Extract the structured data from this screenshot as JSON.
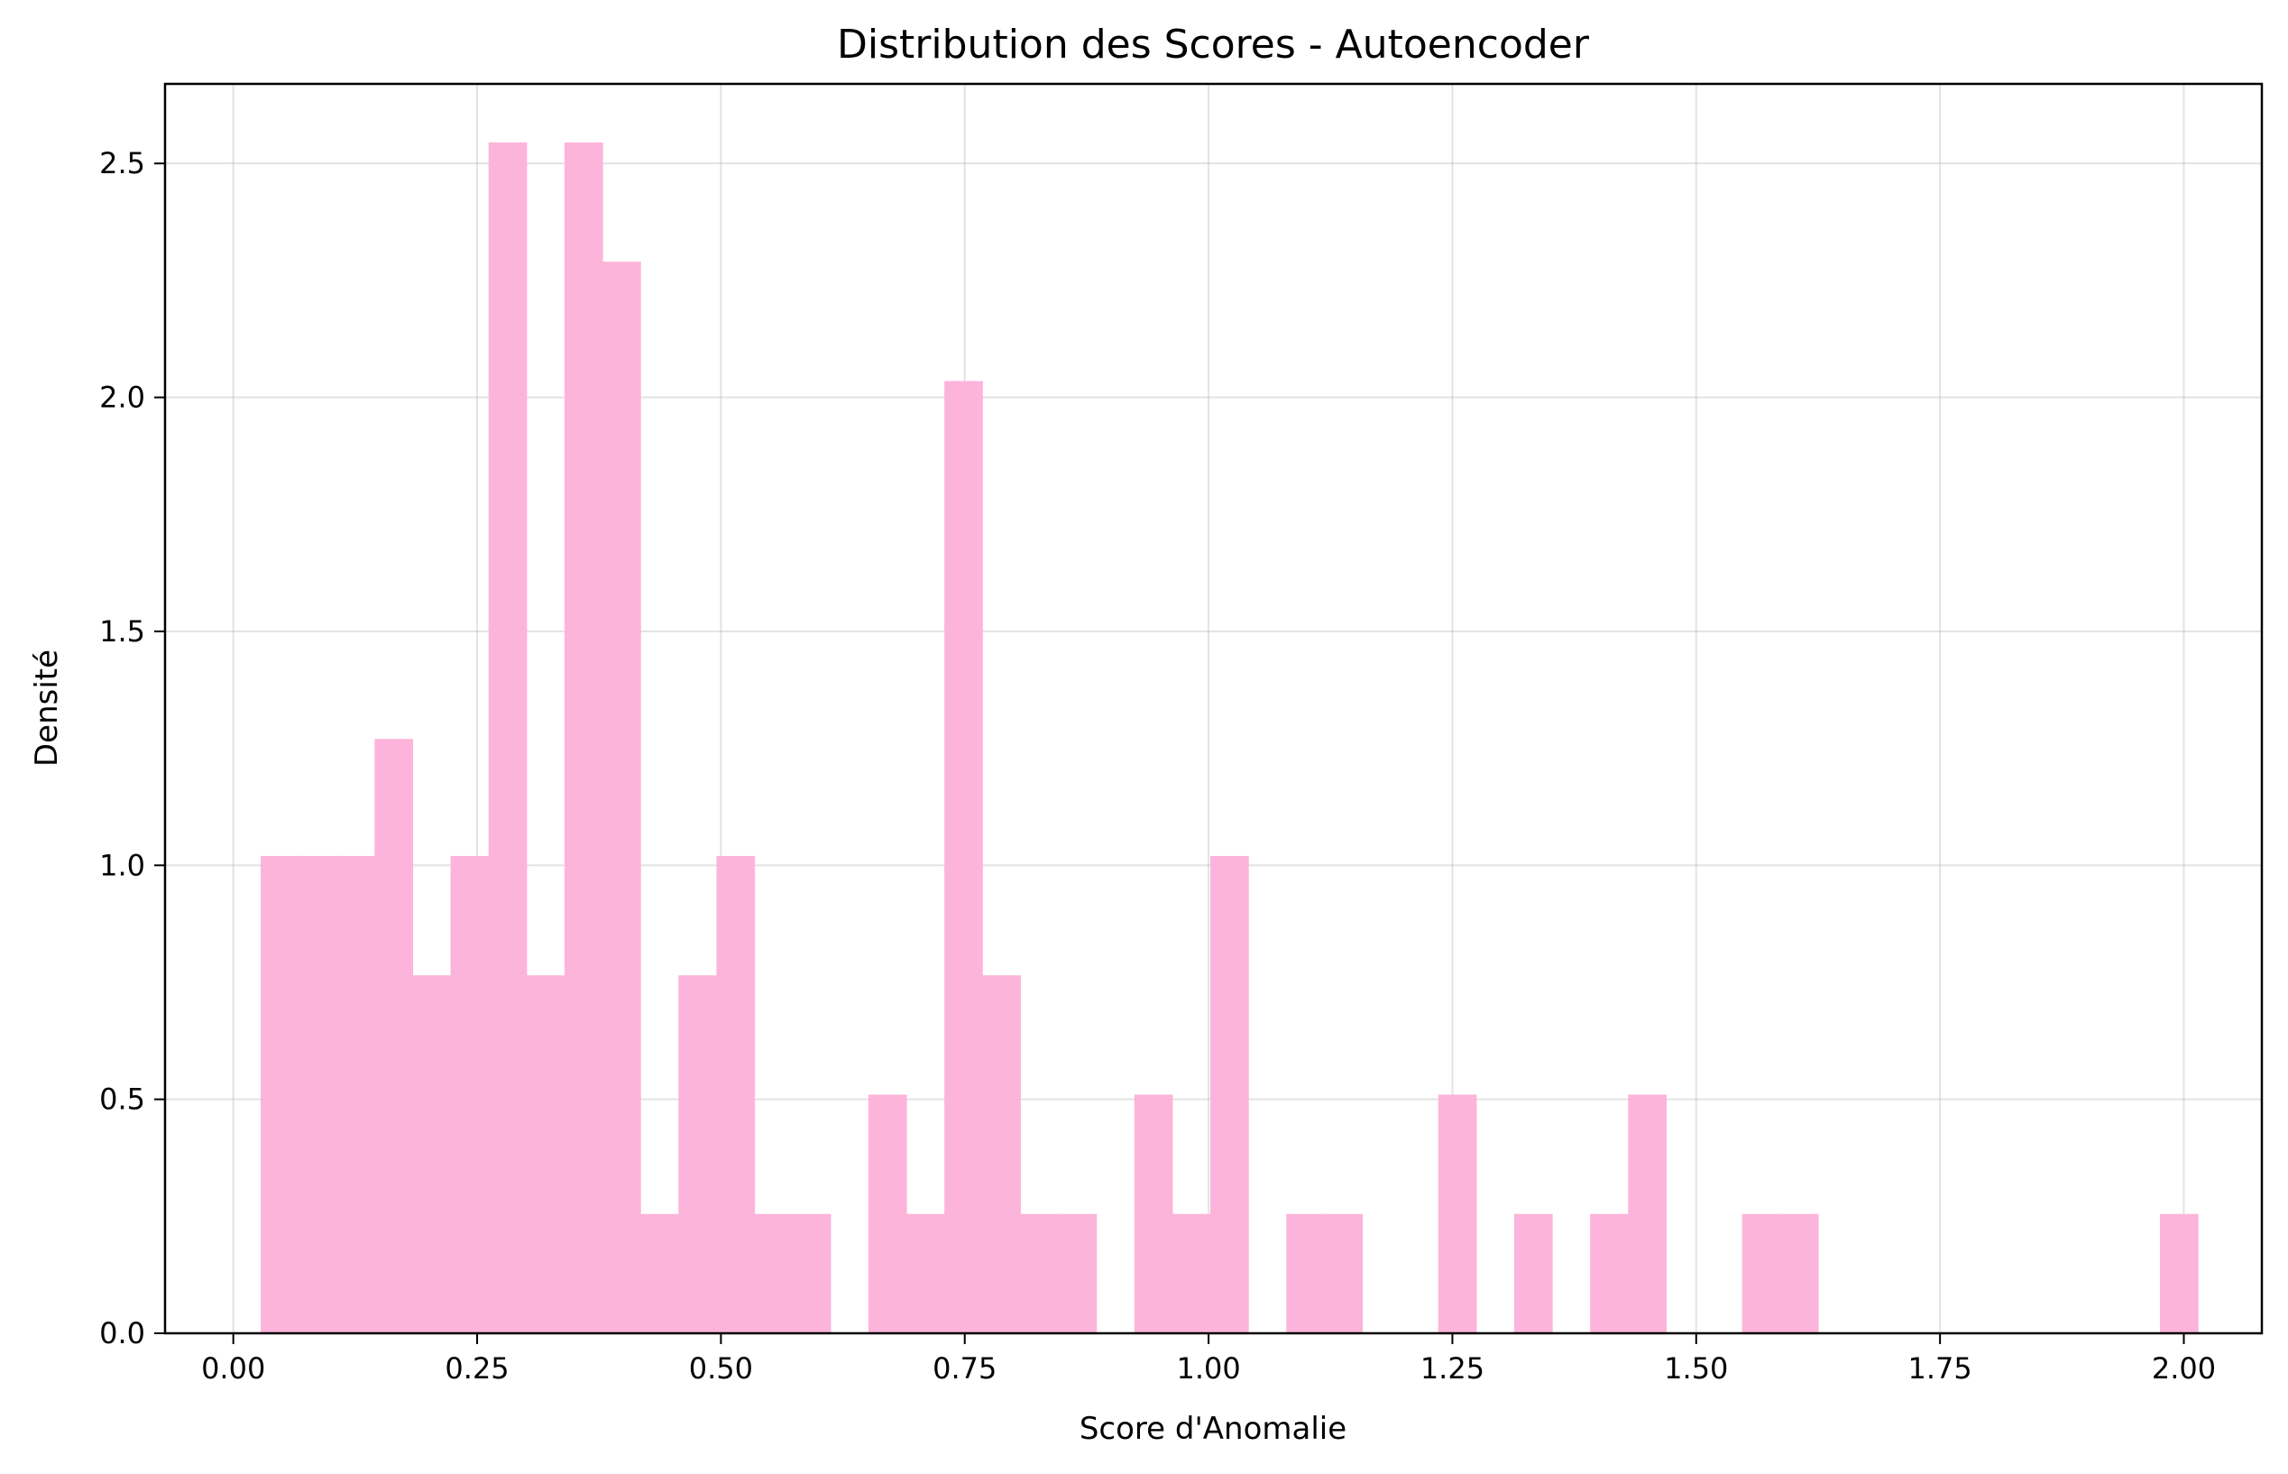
{
  "chart_data": {
    "type": "bar",
    "title": "Distribution des Scores - Autoencoder",
    "xlabel": "Score d'Anomalie",
    "ylabel": "Densité",
    "xlim": [
      -0.07,
      2.08
    ],
    "ylim": [
      0,
      2.67
    ],
    "grid": true,
    "bar_color": "#fdb4da",
    "bin_width": 0.03895,
    "bin_start": 0.028,
    "values": [
      1.02,
      1.02,
      1.02,
      1.27,
      0.765,
      1.02,
      2.545,
      0.765,
      2.545,
      2.29,
      0.255,
      0.765,
      1.02,
      0.255,
      0.255,
      0,
      0.51,
      0.255,
      2.035,
      0.765,
      0.255,
      0.255,
      0,
      0.51,
      0.255,
      1.02,
      0,
      0.255,
      0.255,
      0,
      0,
      0.51,
      0,
      0.255,
      0,
      0.255,
      0.51,
      0,
      0,
      0.255,
      0.255,
      0,
      0,
      0,
      0,
      0,
      0,
      0,
      0,
      0,
      0.255
    ],
    "x_ticks": [
      0.0,
      0.25,
      0.5,
      0.75,
      1.0,
      1.25,
      1.5,
      1.75,
      2.0
    ],
    "x_tick_labels": [
      "0.00",
      "0.25",
      "0.50",
      "0.75",
      "1.00",
      "1.25",
      "1.50",
      "1.75",
      "2.00"
    ],
    "y_ticks": [
      0.0,
      0.5,
      1.0,
      1.5,
      2.0,
      2.5
    ],
    "y_tick_labels": [
      "0.0",
      "0.5",
      "1.0",
      "1.5",
      "2.0",
      "2.5"
    ]
  }
}
